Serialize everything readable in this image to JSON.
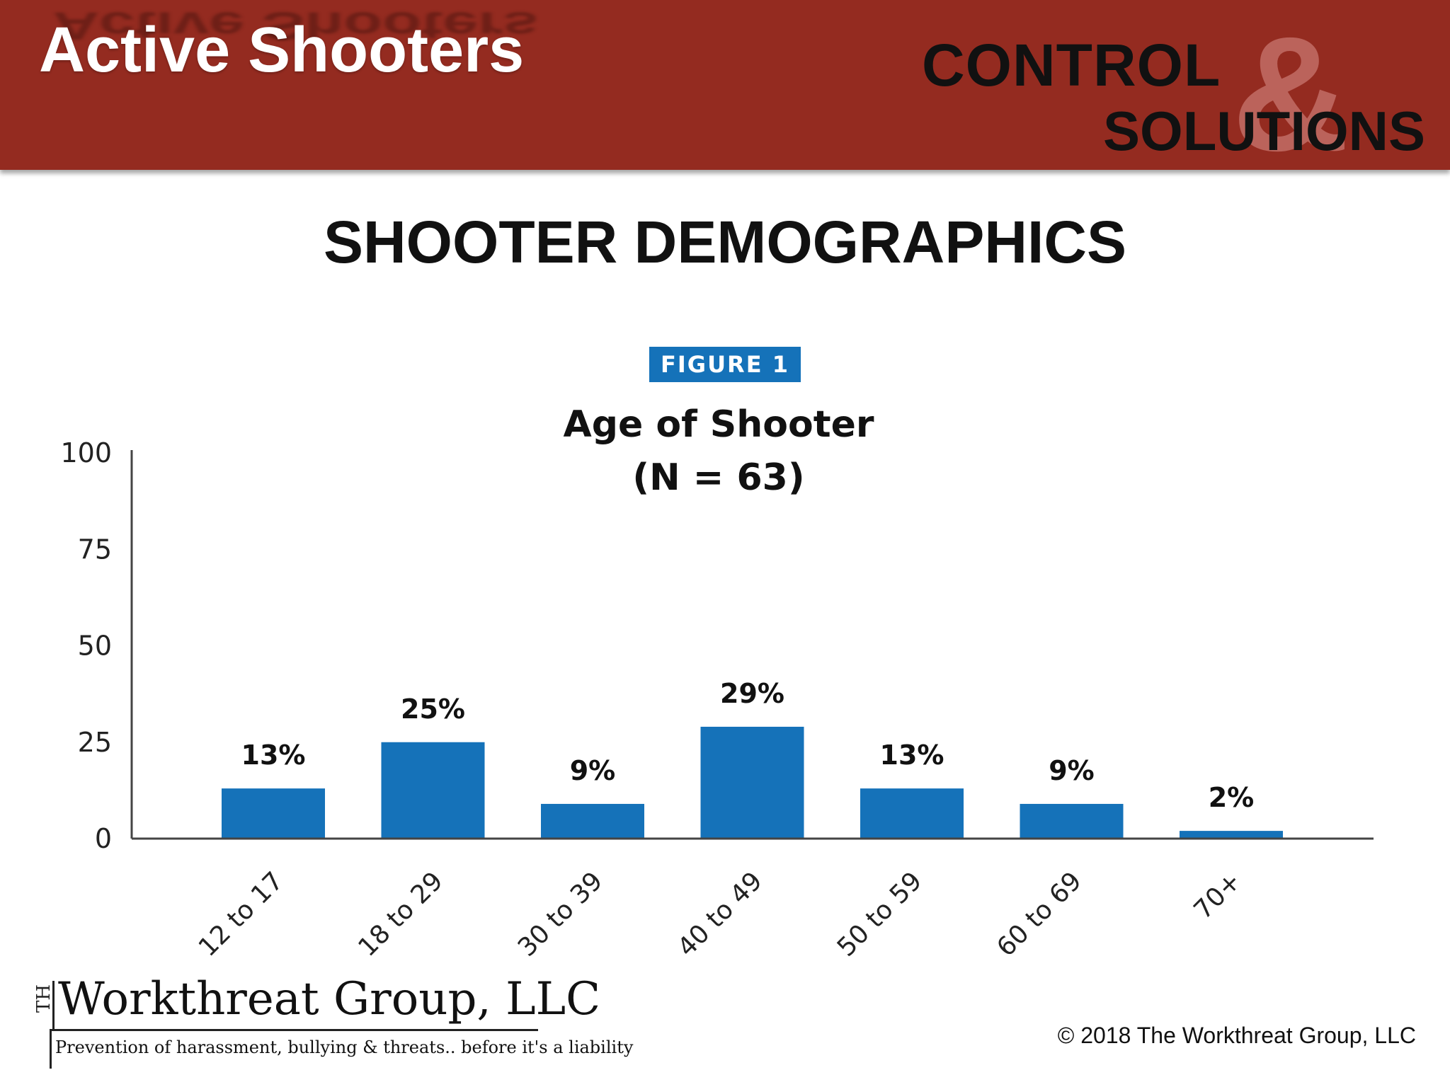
{
  "header": {
    "title": "Active Shooters",
    "logo": {
      "control": "CONTROL",
      "amp": "&",
      "solutions": "SOLUTIONS"
    }
  },
  "slide_title": "SHOOTER DEMOGRAPHICS",
  "figure_badge": "FIGURE 1",
  "chart_data": {
    "type": "bar",
    "title": "Age of Shooter",
    "subtitle": "(N = 63)",
    "categories": [
      "12 to 17",
      "18 to 29",
      "30 to 39",
      "40 to 49",
      "50 to 59",
      "60 to 69",
      "70+"
    ],
    "values": [
      13,
      25,
      9,
      29,
      13,
      9,
      2
    ],
    "data_labels": [
      "13%",
      "25%",
      "9%",
      "29%",
      "13%",
      "9%",
      "2%"
    ],
    "ylim": [
      0,
      100
    ],
    "yticks": [
      0,
      25,
      50,
      75,
      100
    ],
    "xlabel": "",
    "ylabel": "",
    "grid": false,
    "bar_color": "#1572b9"
  },
  "footer": {
    "logo_mark": "TH",
    "company_name": "Workthreat Group, LLC",
    "tagline": "Prevention of harassment, bullying & threats.. before it's a liability",
    "copyright": "© 2018 The Workthreat Group, LLC"
  },
  "colors": {
    "header_bg": "#942b20",
    "accent": "#1572b9"
  }
}
